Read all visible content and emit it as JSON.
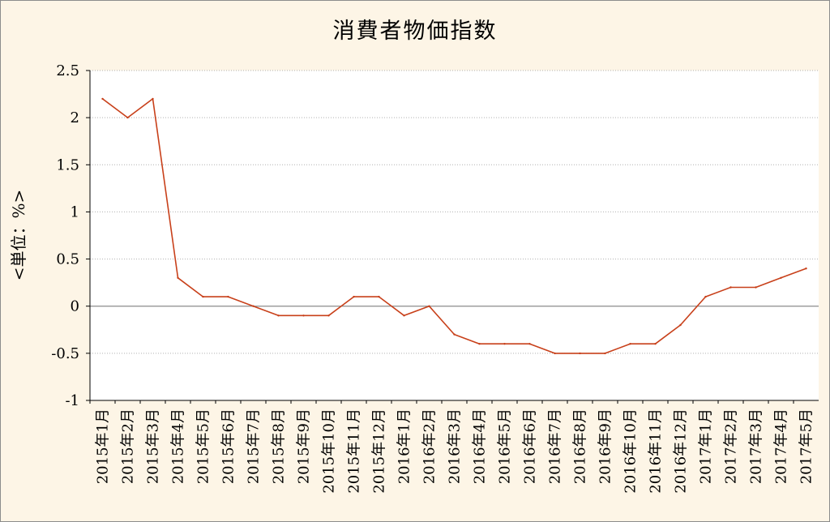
{
  "chart_data": {
    "type": "line",
    "title": "消費者物価指数",
    "ylabel": "<単位：%>",
    "xlabel": "",
    "ylim": [
      -1,
      2.5
    ],
    "y_ticks": [
      2.5,
      2,
      1.5,
      1,
      0.5,
      0,
      -0.5,
      -1
    ],
    "y_tick_labels": [
      "2.5",
      "2",
      "1.5",
      "1",
      "0.5",
      "0",
      "-0.5",
      "-1"
    ],
    "grid": "horizontal-dotted",
    "legend": "none",
    "line_color": "#c8401a",
    "zero_line_color": "#8c8c8c",
    "categories": [
      "2015年1月",
      "2015年2月",
      "2015年3月",
      "2015年4月",
      "2015年5月",
      "2015年6月",
      "2015年7月",
      "2015年8月",
      "2015年9月",
      "2015年10月",
      "2015年11月",
      "2015年12月",
      "2016年1月",
      "2016年2月",
      "2016年3月",
      "2016年4月",
      "2016年5月",
      "2016年6月",
      "2016年7月",
      "2016年8月",
      "2016年9月",
      "2016年10月",
      "2016年11月",
      "2016年12月",
      "2017年1月",
      "2017年2月",
      "2017年3月",
      "2017年4月",
      "2017年5月"
    ],
    "series": [
      {
        "values": [
          2.2,
          2.0,
          2.2,
          0.3,
          0.1,
          0.1,
          0.0,
          -0.1,
          -0.1,
          -0.1,
          0.1,
          0.1,
          -0.1,
          0.0,
          -0.3,
          -0.4,
          -0.4,
          -0.4,
          -0.5,
          -0.5,
          -0.5,
          -0.4,
          -0.4,
          -0.2,
          0.1,
          0.2,
          0.2,
          0.3,
          0.4
        ]
      }
    ]
  }
}
